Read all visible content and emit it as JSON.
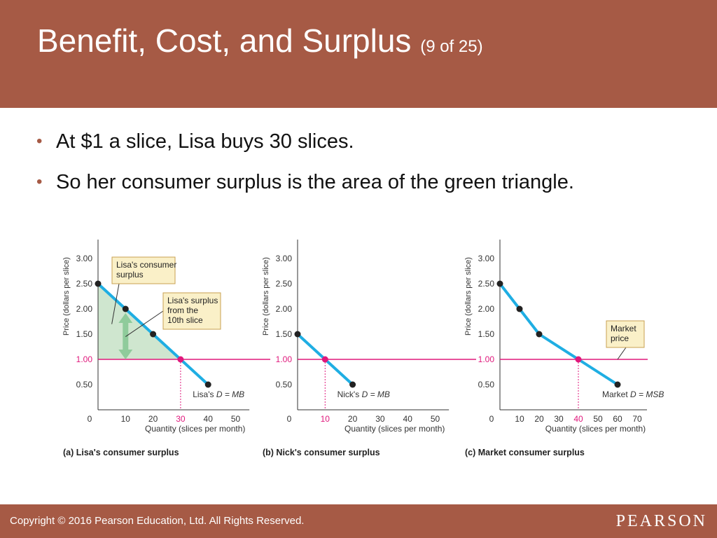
{
  "slide": {
    "title": "Benefit, Cost, and Surplus",
    "title_suffix": "(9 of 25)",
    "bullets": [
      "At $1 a slice, Lisa buys 30 slices.",
      "So her consumer surplus is the area of the green triangle."
    ],
    "copyright": "Copyright © 2016 Pearson Education, Ltd. All Rights Reserved.",
    "logo": "PEARSON"
  },
  "colors": {
    "brand": "#A65A45",
    "demand_line": "#1FAEE3",
    "price_line": "#E0187C",
    "surplus_fill": "#CFE6CF",
    "arrow": "#8FCB9B",
    "callout_bg": "#FAF0C8",
    "callout_border": "#C8A052",
    "point": "#222222"
  },
  "chart_data": [
    {
      "type": "line",
      "panel_title": "(a) Lisa's consumer surplus",
      "ylabel": "Price (dollars per slice)",
      "xlabel": "Quantity (slices per month)",
      "x_ticks": [
        0,
        10,
        20,
        30,
        40,
        50
      ],
      "x_tick_labels": [
        "0",
        "10",
        "20",
        "30",
        "40",
        "50"
      ],
      "highlight_x_tick": 30,
      "y_ticks": [
        0.5,
        1.0,
        1.5,
        2.0,
        2.5,
        3.0
      ],
      "y_tick_labels": [
        "0.50",
        "1.00",
        "1.50",
        "2.00",
        "2.50",
        "3.00"
      ],
      "highlight_y_tick": 1.0,
      "xlim": [
        0,
        55
      ],
      "ylim": [
        0,
        3.3
      ],
      "market_price": 1.0,
      "series": [
        {
          "name": "Lisa's D = MB",
          "x": [
            0,
            10,
            20,
            30,
            40
          ],
          "y": [
            2.5,
            2.0,
            1.5,
            1.0,
            0.5
          ]
        }
      ],
      "equilibrium": {
        "x": 30,
        "y": 1.0
      },
      "surplus_area": true,
      "slice_arrow": {
        "x": 10,
        "y_from": 1.0,
        "y_to": 2.0
      },
      "annotations": [
        {
          "text": [
            "Lisa's consumer",
            "surplus"
          ],
          "target": [
            5,
            1.7
          ]
        },
        {
          "text": [
            "Lisa's surplus",
            "from the",
            "10th slice"
          ],
          "target": [
            10,
            1.45
          ]
        }
      ],
      "curve_label": {
        "prefix": "Lisa's ",
        "italic": "D = MB"
      }
    },
    {
      "type": "line",
      "panel_title": "(b) Nick's consumer surplus",
      "ylabel": "Price (dollars per slice)",
      "xlabel": "Quantity (slices per month)",
      "x_ticks": [
        0,
        10,
        20,
        30,
        40,
        50
      ],
      "x_tick_labels": [
        "0",
        "10",
        "20",
        "30",
        "40",
        "50"
      ],
      "highlight_x_tick": 10,
      "y_ticks": [
        0.5,
        1.0,
        1.5,
        2.0,
        2.5,
        3.0
      ],
      "y_tick_labels": [
        "0.50",
        "1.00",
        "1.50",
        "2.00",
        "2.50",
        "3.00"
      ],
      "highlight_y_tick": 1.0,
      "xlim": [
        0,
        55
      ],
      "ylim": [
        0,
        3.3
      ],
      "market_price": 1.0,
      "series": [
        {
          "name": "Nick's D = MB",
          "x": [
            0,
            10,
            20
          ],
          "y": [
            1.5,
            1.0,
            0.5
          ]
        }
      ],
      "equilibrium": {
        "x": 10,
        "y": 1.0
      },
      "surplus_area": false,
      "annotations": [],
      "curve_label": {
        "prefix": "Nick's ",
        "italic": "D = MB"
      }
    },
    {
      "type": "line",
      "panel_title": "(c) Market consumer surplus",
      "ylabel": "Price (dollars per slice)",
      "xlabel": "Quantity (slices per month)",
      "x_ticks": [
        0,
        10,
        20,
        30,
        40,
        50,
        60,
        70
      ],
      "x_tick_labels": [
        "0",
        "10",
        "20",
        "30",
        "40",
        "50",
        "60",
        "70"
      ],
      "highlight_x_tick": 40,
      "y_ticks": [
        0.5,
        1.0,
        1.5,
        2.0,
        2.5,
        3.0
      ],
      "y_tick_labels": [
        "0.50",
        "1.00",
        "1.50",
        "2.00",
        "2.50",
        "3.00"
      ],
      "highlight_y_tick": 1.0,
      "xlim": [
        0,
        75
      ],
      "ylim": [
        0,
        3.3
      ],
      "market_price": 1.0,
      "series": [
        {
          "name": "Market D = MSB",
          "x": [
            0,
            10,
            20,
            40,
            60
          ],
          "y": [
            2.5,
            2.0,
            1.5,
            1.0,
            0.5
          ]
        }
      ],
      "equilibrium": {
        "x": 40,
        "y": 1.0
      },
      "surplus_area": false,
      "annotations": [
        {
          "text": [
            "Market",
            "price"
          ],
          "target": [
            60,
            1.0
          ]
        }
      ],
      "curve_label": {
        "prefix": "Market ",
        "italic": "D = MSB"
      }
    }
  ]
}
